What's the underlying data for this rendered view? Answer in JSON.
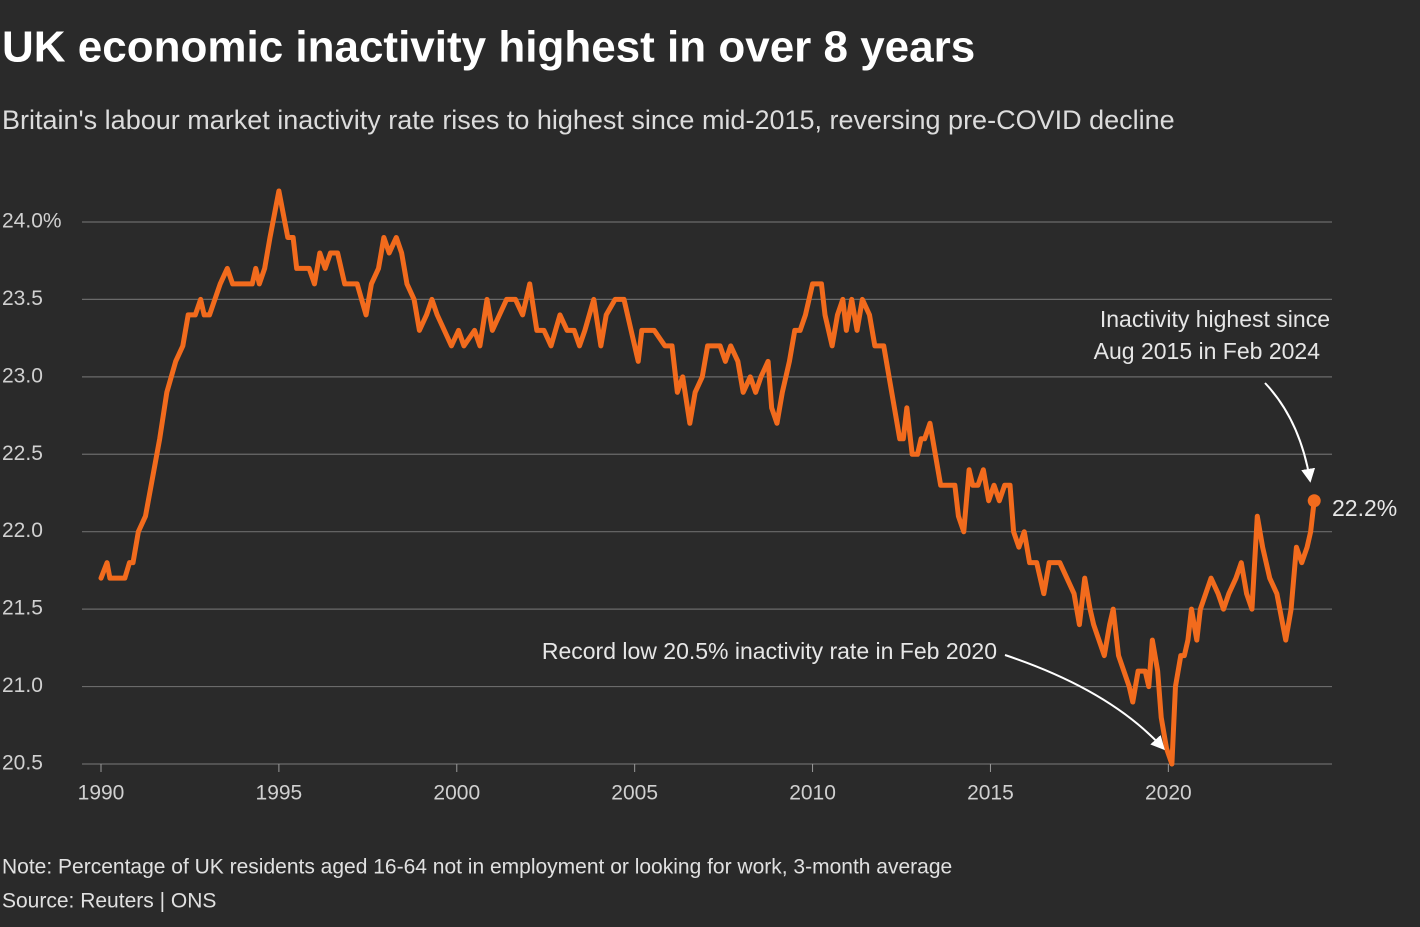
{
  "chart_data": {
    "type": "line",
    "title": "UK economic inactivity highest in over 8 years",
    "subtitle": "Britain's labour market inactivity rate rises to highest since mid-2015, reversing pre-COVID decline",
    "note": "Note: Percentage of UK residents aged 16-64 not in employment or looking for work, 3-month average",
    "source": "Source: Reuters | ONS",
    "annotations": [
      "Inactivity highest since",
      "Aug 2015 in Feb 2024",
      "Record low 20.5% inactivity rate in Feb 2020",
      "22.2%"
    ],
    "xlim": [
      1990,
      2024.6
    ],
    "xticks": [
      1990,
      1995,
      2000,
      2005,
      2010,
      2015,
      2020
    ],
    "ylim": [
      20.5,
      24.2
    ],
    "yticks": [
      {
        "value": 20.5,
        "label": "20.5"
      },
      {
        "value": 21,
        "label": "21.0"
      },
      {
        "value": 21.5,
        "label": "21.5"
      },
      {
        "value": 22,
        "label": "22.0"
      },
      {
        "value": 22.5,
        "label": "22.5"
      },
      {
        "value": 23,
        "label": "23.0"
      },
      {
        "value": 23.5,
        "label": "23.5"
      },
      {
        "value": 24,
        "label": "24.0%"
      }
    ],
    "grid": true,
    "x": [
      1990.0,
      1990.17,
      1990.25,
      1990.67,
      1990.8,
      1990.9,
      1991.05,
      1991.25,
      1991.65,
      1991.85,
      1992.1,
      1992.3,
      1992.45,
      1992.65,
      1992.8,
      1992.9,
      1993.05,
      1993.2,
      1993.35,
      1993.55,
      1993.7,
      1994.25,
      1994.35,
      1994.45,
      1994.6,
      1994.75,
      1995.0,
      1995.25,
      1995.4,
      1995.5,
      1995.85,
      1996.0,
      1996.15,
      1996.3,
      1996.45,
      1996.65,
      1996.85,
      1997.2,
      1997.45,
      1997.6,
      1997.8,
      1997.95,
      1998.1,
      1998.3,
      1998.45,
      1998.6,
      1998.8,
      1998.95,
      1999.15,
      1999.3,
      1999.45,
      1999.65,
      1999.85,
      2000.05,
      2000.2,
      2000.5,
      2000.65,
      2000.85,
      2001.0,
      2001.2,
      2001.4,
      2001.65,
      2001.85,
      2002.05,
      2002.25,
      2002.45,
      2002.65,
      2002.9,
      2003.1,
      2003.3,
      2003.45,
      2003.6,
      2003.85,
      2004.05,
      2004.2,
      2004.45,
      2004.7,
      2004.9,
      2005.1,
      2005.2,
      2005.55,
      2005.85,
      2006.05,
      2006.2,
      2006.35,
      2006.55,
      2006.7,
      2006.9,
      2007.05,
      2007.4,
      2007.55,
      2007.7,
      2007.9,
      2008.05,
      2008.25,
      2008.4,
      2008.55,
      2008.75,
      2008.85,
      2009.0,
      2009.15,
      2009.35,
      2009.5,
      2009.65,
      2009.8,
      2010.0,
      2010.25,
      2010.35,
      2010.55,
      2010.7,
      2010.85,
      2010.95,
      2011.1,
      2011.25,
      2011.4,
      2011.6,
      2011.75,
      2012.0,
      2012.15,
      2012.3,
      2012.45,
      2012.55,
      2012.65,
      2012.8,
      2012.95,
      2013.05,
      2013.15,
      2013.3,
      2013.45,
      2013.6,
      2014.0,
      2014.1,
      2014.25,
      2014.4,
      2014.5,
      2014.65,
      2014.8,
      2014.95,
      2015.1,
      2015.25,
      2015.4,
      2015.55,
      2015.65,
      2015.8,
      2015.95,
      2016.1,
      2016.3,
      2016.5,
      2016.65,
      2016.95,
      2017.15,
      2017.35,
      2017.5,
      2017.65,
      2017.8,
      2017.9,
      2018.05,
      2018.2,
      2018.35,
      2018.45,
      2018.6,
      2018.75,
      2018.9,
      2019.0,
      2019.15,
      2019.35,
      2019.45,
      2019.55,
      2019.7,
      2019.8,
      2019.95,
      2020.1,
      2020.2,
      2020.35,
      2020.45,
      2020.55,
      2020.65,
      2020.8,
      2020.9,
      2021.05,
      2021.2,
      2021.4,
      2021.55,
      2021.7,
      2021.9,
      2022.05,
      2022.2,
      2022.35,
      2022.5,
      2022.65,
      2022.85,
      2023.05,
      2023.3,
      2023.45,
      2023.6,
      2023.75,
      2023.9,
      2024.0,
      2024.1
    ],
    "series": [
      {
        "name": "Inactivity rate",
        "color": "#f26b1d",
        "values": [
          21.7,
          21.8,
          21.7,
          21.7,
          21.8,
          21.8,
          22.0,
          22.1,
          22.6,
          22.9,
          23.1,
          23.2,
          23.4,
          23.4,
          23.5,
          23.4,
          23.4,
          23.5,
          23.6,
          23.7,
          23.6,
          23.6,
          23.7,
          23.6,
          23.7,
          23.9,
          24.2,
          23.9,
          23.9,
          23.7,
          23.7,
          23.6,
          23.8,
          23.7,
          23.8,
          23.8,
          23.6,
          23.6,
          23.4,
          23.6,
          23.7,
          23.9,
          23.8,
          23.9,
          23.8,
          23.6,
          23.5,
          23.3,
          23.4,
          23.5,
          23.4,
          23.3,
          23.2,
          23.3,
          23.2,
          23.3,
          23.2,
          23.5,
          23.3,
          23.4,
          23.5,
          23.5,
          23.4,
          23.6,
          23.3,
          23.3,
          23.2,
          23.4,
          23.3,
          23.3,
          23.2,
          23.3,
          23.5,
          23.2,
          23.4,
          23.5,
          23.5,
          23.3,
          23.1,
          23.3,
          23.3,
          23.2,
          23.2,
          22.9,
          23.0,
          22.7,
          22.9,
          23.0,
          23.2,
          23.2,
          23.1,
          23.2,
          23.1,
          22.9,
          23.0,
          22.9,
          23.0,
          23.1,
          22.8,
          22.7,
          22.9,
          23.1,
          23.3,
          23.3,
          23.4,
          23.6,
          23.6,
          23.4,
          23.2,
          23.4,
          23.5,
          23.3,
          23.5,
          23.3,
          23.5,
          23.4,
          23.2,
          23.2,
          23.0,
          22.8,
          22.6,
          22.6,
          22.8,
          22.5,
          22.5,
          22.6,
          22.6,
          22.7,
          22.5,
          22.3,
          22.3,
          22.1,
          22.0,
          22.4,
          22.3,
          22.3,
          22.4,
          22.2,
          22.3,
          22.2,
          22.3,
          22.3,
          22.0,
          21.9,
          22.0,
          21.8,
          21.8,
          21.6,
          21.8,
          21.8,
          21.7,
          21.6,
          21.4,
          21.7,
          21.5,
          21.4,
          21.3,
          21.2,
          21.4,
          21.5,
          21.2,
          21.1,
          21.0,
          20.9,
          21.1,
          21.1,
          21.0,
          21.3,
          21.1,
          20.8,
          20.6,
          20.5,
          21.0,
          21.2,
          21.2,
          21.3,
          21.5,
          21.3,
          21.5,
          21.6,
          21.7,
          21.6,
          21.5,
          21.6,
          21.7,
          21.8,
          21.6,
          21.5,
          22.1,
          21.9,
          21.7,
          21.6,
          21.3,
          21.5,
          21.9,
          21.8,
          21.9,
          22.0,
          22.2
        ]
      }
    ]
  }
}
